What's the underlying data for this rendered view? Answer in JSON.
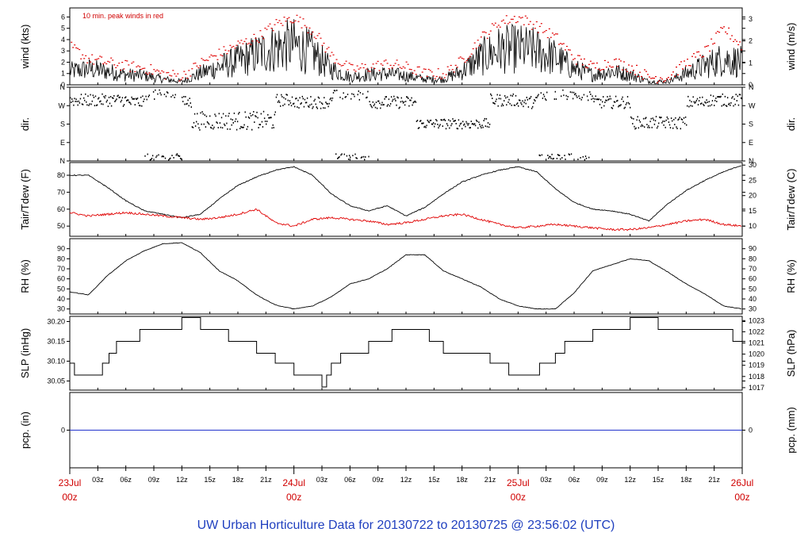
{
  "footer": "UW Urban Horticulture Data for 20130722  to  20130725 @ 23:56:02  (UTC)",
  "colors": {
    "red": "#e00000",
    "black": "#000000",
    "blue": "#1f3fbf",
    "pcp_line": "#2233cc"
  },
  "x_axis": {
    "hours_total": 72,
    "day_labels": [
      {
        "day": "23Jul",
        "z": "00z",
        "hour": 0
      },
      {
        "day": "24Jul",
        "z": "00z",
        "hour": 24
      },
      {
        "day": "25Jul",
        "z": "00z",
        "hour": 48
      },
      {
        "day": "26Jul",
        "z": "00z",
        "hour": 72
      }
    ],
    "hour_ticks": [
      {
        "label": "03z",
        "hour": 3
      },
      {
        "label": "06z",
        "hour": 6
      },
      {
        "label": "09z",
        "hour": 9
      },
      {
        "label": "12z",
        "hour": 12
      },
      {
        "label": "15z",
        "hour": 15
      },
      {
        "label": "18z",
        "hour": 18
      },
      {
        "label": "21z",
        "hour": 21
      },
      {
        "label": "03z",
        "hour": 27
      },
      {
        "label": "06z",
        "hour": 30
      },
      {
        "label": "09z",
        "hour": 33
      },
      {
        "label": "12z",
        "hour": 36
      },
      {
        "label": "15z",
        "hour": 39
      },
      {
        "label": "18z",
        "hour": 42
      },
      {
        "label": "21z",
        "hour": 45
      },
      {
        "label": "03z",
        "hour": 51
      },
      {
        "label": "06z",
        "hour": 54
      },
      {
        "label": "09z",
        "hour": 57
      },
      {
        "label": "12z",
        "hour": 60
      },
      {
        "label": "15z",
        "hour": 63
      },
      {
        "label": "18z",
        "hour": 66
      },
      {
        "label": "21z",
        "hour": 69
      }
    ]
  },
  "chart_data": [
    {
      "type": "line",
      "panel": "wind",
      "ylabel": "wind (kts)",
      "ylabel_right": "wind (m/s)",
      "annotation": "10 min. peak winds in red",
      "ylim": [
        0,
        6.8
      ],
      "yticks": [
        "0",
        "1",
        "2",
        "3",
        "4",
        "5",
        "6"
      ],
      "yticks_right": [
        "0",
        "1",
        "2",
        "3"
      ],
      "series": [
        {
          "hours": [
            0,
            2,
            4,
            6,
            8,
            10,
            12,
            14,
            16,
            18,
            20,
            22,
            24,
            26,
            28,
            30,
            32,
            34,
            36,
            38,
            40,
            42,
            44,
            46,
            48,
            50,
            52,
            54,
            56,
            58,
            60,
            62,
            64,
            66,
            68,
            70,
            72
          ],
          "values": [
            1.2,
            1.4,
            1.2,
            0.9,
            0.8,
            0.5,
            0.3,
            1.0,
            1.6,
            2.1,
            2.7,
            3.3,
            3.5,
            2.8,
            1.4,
            0.7,
            0.9,
            1.0,
            0.8,
            0.5,
            0.5,
            1.2,
            2.4,
            3.1,
            3.2,
            3.0,
            2.4,
            1.4,
            0.9,
            1.2,
            0.9,
            0.3,
            0.3,
            1.0,
            1.7,
            2.3,
            2.0
          ]
        },
        {
          "hours": [
            0,
            2,
            4,
            6,
            8,
            10,
            12,
            14,
            16,
            18,
            20,
            22,
            24,
            26,
            28,
            30,
            32,
            34,
            36,
            38,
            40,
            42,
            44,
            46,
            48,
            50,
            52,
            54,
            56,
            58,
            60,
            62,
            64,
            66,
            68,
            70,
            72
          ],
          "values": [
            3.4,
            2.3,
            2.0,
            1.7,
            1.5,
            1.0,
            0.8,
            2.0,
            2.8,
            3.6,
            4.2,
            5.4,
            6.0,
            4.8,
            2.6,
            1.4,
            1.6,
            1.9,
            1.6,
            1.0,
            1.0,
            2.2,
            4.2,
            5.6,
            6.0,
            5.2,
            4.2,
            2.4,
            1.6,
            2.1,
            1.6,
            0.7,
            0.7,
            2.0,
            3.0,
            5.0,
            3.4
          ]
        }
      ]
    },
    {
      "type": "scatter",
      "panel": "dir",
      "ylabel": "dir.",
      "ylabel_right": "dir.",
      "ylim": [
        0,
        360
      ],
      "yticks": [
        "N",
        "E",
        "S",
        "W",
        "N"
      ]
    },
    {
      "type": "line",
      "panel": "temp",
      "ylabel": "Tair/Tdew (F)",
      "ylabel_right": "Tair/Tdew (C)",
      "ylim": [
        44,
        87.5
      ],
      "yticks": [
        "50",
        "60",
        "70",
        "80"
      ],
      "yticks_right": [
        "10",
        "15",
        "20",
        "25",
        "30"
      ],
      "series": [
        {
          "hours": [
            0,
            2,
            4,
            6,
            8,
            10,
            12,
            14,
            16,
            18,
            20,
            22,
            24,
            26,
            28,
            30,
            32,
            34,
            36,
            38,
            40,
            42,
            44,
            46,
            48,
            50,
            52,
            54,
            56,
            58,
            60,
            62,
            64,
            66,
            68,
            70,
            72
          ],
          "values": [
            80,
            80,
            73,
            65,
            59,
            57,
            55,
            57,
            66,
            74,
            79,
            83,
            85,
            80,
            69,
            62,
            59,
            62,
            56,
            61,
            69,
            76,
            80,
            83,
            85,
            82,
            72,
            64,
            60,
            59,
            57,
            53,
            63,
            71,
            77,
            82,
            86
          ]
        },
        {
          "hours": [
            0,
            2,
            4,
            6,
            8,
            10,
            12,
            14,
            16,
            18,
            20,
            22,
            24,
            26,
            28,
            30,
            32,
            34,
            36,
            38,
            40,
            42,
            44,
            46,
            48,
            50,
            52,
            54,
            56,
            58,
            60,
            62,
            64,
            66,
            68,
            70,
            72
          ],
          "values": [
            58,
            56,
            57,
            58,
            57,
            56,
            55,
            54,
            55,
            57,
            60,
            52,
            50,
            54,
            55,
            54,
            53,
            51,
            52,
            54,
            56,
            57,
            54,
            51,
            49,
            50,
            51,
            50,
            49,
            48,
            48,
            49,
            51,
            53,
            54,
            51,
            50
          ]
        }
      ]
    },
    {
      "type": "line",
      "panel": "rh",
      "ylabel": "RH (%)",
      "ylabel_right": "RH (%)",
      "ylim": [
        25,
        100
      ],
      "yticks": [
        "30",
        "40",
        "50",
        "60",
        "70",
        "80",
        "90"
      ],
      "series": [
        {
          "hours": [
            0,
            2,
            4,
            6,
            8,
            10,
            12,
            14,
            16,
            18,
            20,
            22,
            24,
            26,
            28,
            30,
            32,
            34,
            36,
            38,
            40,
            42,
            44,
            46,
            48,
            50,
            52,
            54,
            56,
            58,
            60,
            62,
            64,
            66,
            68,
            70,
            72
          ],
          "values": [
            47,
            44,
            63,
            78,
            88,
            95,
            96,
            86,
            68,
            58,
            44,
            34,
            30,
            33,
            42,
            55,
            60,
            70,
            84,
            84,
            68,
            60,
            52,
            40,
            33,
            30,
            30,
            46,
            68,
            74,
            80,
            78,
            67,
            55,
            45,
            33,
            30
          ]
        }
      ]
    },
    {
      "type": "line",
      "panel": "slp",
      "ylabel": "SLP (inHg)",
      "ylabel_right": "SLP (hPa)",
      "ylim": [
        30.027,
        30.213
      ],
      "yticks": [
        "30.05",
        "30.10",
        "30.15",
        "30.20"
      ],
      "yticks_right": [
        "1017",
        "1018",
        "1019",
        "1020",
        "1021",
        "1022",
        "1023"
      ],
      "series": [
        {
          "hours": [
            0,
            0.5,
            3.5,
            4.2,
            5,
            7.5,
            12,
            14,
            17,
            20,
            22,
            24,
            27,
            27.5,
            28,
            29,
            32,
            34.5,
            38.5,
            40,
            45,
            47,
            50,
            50.3,
            51,
            52,
            53,
            56,
            60,
            63,
            67,
            71,
            72
          ],
          "values": [
            30.095,
            30.065,
            30.095,
            30.12,
            30.15,
            30.18,
            30.21,
            30.18,
            30.15,
            30.12,
            30.095,
            30.065,
            30.035,
            30.065,
            30.095,
            30.12,
            30.15,
            30.18,
            30.15,
            30.12,
            30.095,
            30.065,
            30.065,
            30.095,
            30.095,
            30.12,
            30.15,
            30.18,
            30.21,
            30.18,
            30.18,
            30.15,
            30.12
          ]
        }
      ]
    },
    {
      "type": "line",
      "panel": "pcp",
      "ylabel": "pcp. (in)",
      "ylabel_right": "pcp. (mm)",
      "ylim": [
        -1,
        1
      ],
      "yticks": [
        "0"
      ],
      "yticks_right": [
        "0"
      ],
      "series": [
        {
          "hours": [
            0,
            72
          ],
          "values": [
            0,
            0
          ]
        }
      ]
    }
  ]
}
